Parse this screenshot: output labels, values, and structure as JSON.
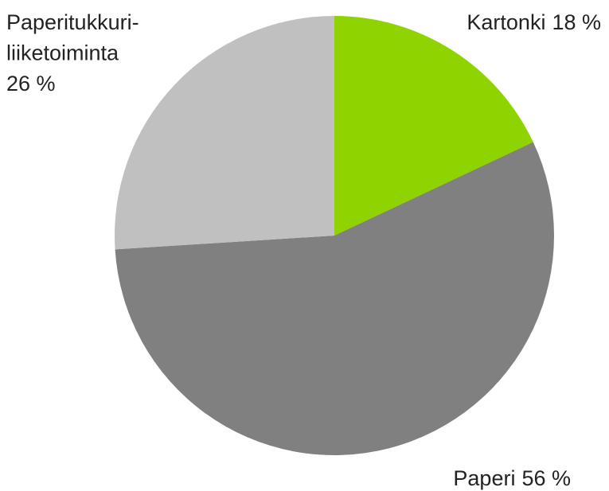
{
  "chart_data": {
    "type": "pie",
    "categories": [
      "Kartonki",
      "Paperi",
      "Paperitukkuri-liiketoiminta"
    ],
    "values": [
      18,
      56,
      26
    ],
    "value_labels": [
      "18 %",
      "56 %",
      "26 %"
    ],
    "colors": [
      "#8fd400",
      "#808080",
      "#c0c0c0"
    ]
  }
}
